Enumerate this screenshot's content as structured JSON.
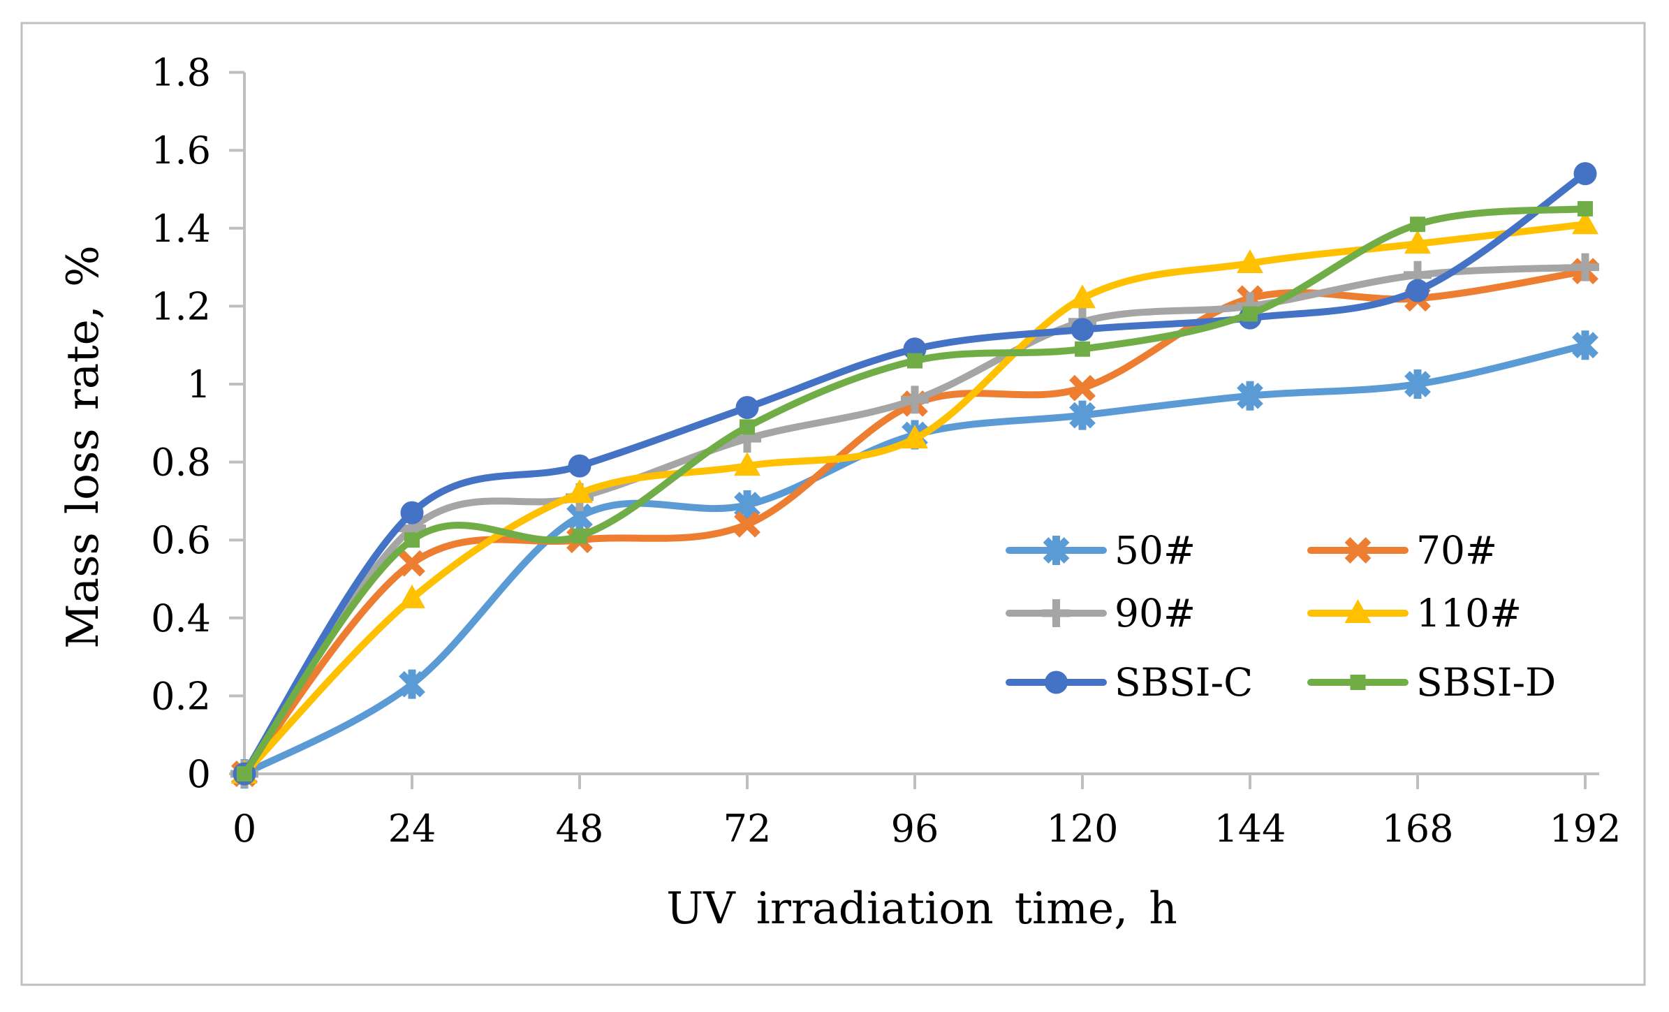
{
  "figure": {
    "background": "#FFFFFF",
    "border_color": "#BFBFBF",
    "axis_color": "#BFBFBF",
    "text_color": "#000000"
  },
  "chart_data": {
    "type": "line",
    "title": "",
    "xlabel": "UV irradiation time, h",
    "ylabel": "Mass loss rate, %",
    "x": [
      0,
      24,
      48,
      72,
      96,
      120,
      144,
      168,
      192
    ],
    "xtick_labels": [
      "0",
      "24",
      "48",
      "72",
      "96",
      "120",
      "144",
      "168",
      "192"
    ],
    "ytick_values": [
      0,
      0.2,
      0.4,
      0.6,
      0.8,
      1.0,
      1.2,
      1.4,
      1.6,
      1.8
    ],
    "ytick_labels": [
      "0",
      "0.2",
      "0.4",
      "0.6",
      "0.8",
      "1",
      "1.2",
      "1.4",
      "1.6",
      "1.8"
    ],
    "xlim": [
      0,
      192
    ],
    "ylim": [
      0,
      1.8
    ],
    "grid": false,
    "smooth": true,
    "legend_position": "inside-right-middle",
    "legend_columns": 2,
    "series": [
      {
        "name": "50#",
        "color": "#5B9BD5",
        "marker": "star6",
        "values": [
          0,
          0.23,
          0.66,
          0.69,
          0.87,
          0.92,
          0.97,
          1.0,
          1.1
        ]
      },
      {
        "name": "70#",
        "color": "#ED7D31",
        "marker": "x",
        "values": [
          0,
          0.54,
          0.6,
          0.64,
          0.95,
          0.99,
          1.22,
          1.22,
          1.29
        ]
      },
      {
        "name": "90#",
        "color": "#A5A5A5",
        "marker": "plus",
        "values": [
          0,
          0.63,
          0.71,
          0.86,
          0.96,
          1.16,
          1.2,
          1.28,
          1.3
        ]
      },
      {
        "name": "110#",
        "color": "#FFC000",
        "marker": "triangle",
        "values": [
          0,
          0.45,
          0.72,
          0.79,
          0.86,
          1.22,
          1.31,
          1.36,
          1.41
        ]
      },
      {
        "name": "SBSI-C",
        "color": "#4472C4",
        "marker": "circle",
        "values": [
          0,
          0.67,
          0.79,
          0.94,
          1.09,
          1.14,
          1.17,
          1.24,
          1.54
        ]
      },
      {
        "name": "SBSI-D",
        "color": "#70AD47",
        "marker": "square",
        "values": [
          0,
          0.6,
          0.61,
          0.89,
          1.06,
          1.09,
          1.18,
          1.41,
          1.45
        ]
      }
    ]
  }
}
